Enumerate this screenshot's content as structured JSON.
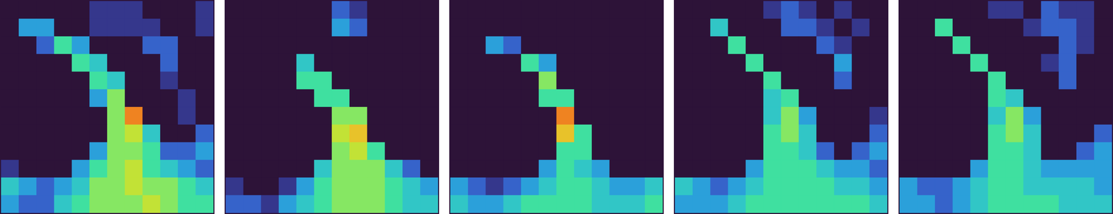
{
  "chart_data": [
    {
      "type": "heatmap",
      "tick_labels": false,
      "zlim": [
        0,
        10
      ],
      "cells": [
        [
          0,
          0,
          0,
          0,
          0,
          1,
          1,
          1,
          0,
          0,
          0,
          1
        ],
        [
          0,
          3,
          3,
          0,
          0,
          1,
          1,
          1,
          1,
          0,
          0,
          1
        ],
        [
          0,
          0,
          2,
          5,
          3,
          0,
          0,
          0,
          2,
          2,
          0,
          0
        ],
        [
          0,
          0,
          0,
          0,
          5,
          4,
          0,
          0,
          0,
          2,
          0,
          0
        ],
        [
          0,
          0,
          0,
          0,
          0,
          5,
          4,
          0,
          0,
          1,
          0,
          0
        ],
        [
          0,
          0,
          0,
          0,
          0,
          3,
          6,
          0,
          0,
          0,
          1,
          0
        ],
        [
          0,
          0,
          0,
          0,
          0,
          0,
          6,
          9,
          0,
          0,
          1,
          0
        ],
        [
          0,
          0,
          0,
          0,
          0,
          0,
          6,
          7,
          4,
          0,
          0,
          2
        ],
        [
          0,
          0,
          0,
          0,
          0,
          3,
          6,
          6,
          5,
          2,
          2,
          3
        ],
        [
          1,
          0,
          0,
          0,
          3,
          5,
          6,
          7,
          5,
          4,
          3,
          2
        ],
        [
          4,
          3,
          2,
          3,
          4,
          6,
          6,
          7,
          6,
          6,
          5,
          4
        ],
        [
          3,
          2,
          2,
          4,
          5,
          6,
          6,
          6,
          7,
          6,
          5,
          5
        ]
      ]
    },
    {
      "type": "heatmap",
      "tick_labels": false,
      "zlim": [
        0,
        10
      ],
      "cells": [
        [
          0,
          0,
          0,
          0,
          0,
          0,
          2,
          1,
          0,
          0,
          0,
          0
        ],
        [
          0,
          0,
          0,
          0,
          0,
          0,
          3,
          2,
          0,
          0,
          0,
          0
        ],
        [
          0,
          0,
          0,
          0,
          0,
          0,
          0,
          0,
          0,
          0,
          0,
          0
        ],
        [
          0,
          0,
          0,
          0,
          4,
          0,
          0,
          0,
          0,
          0,
          0,
          0
        ],
        [
          0,
          0,
          0,
          0,
          5,
          5,
          0,
          0,
          0,
          0,
          0,
          0
        ],
        [
          0,
          0,
          0,
          0,
          0,
          5,
          5,
          0,
          0,
          0,
          0,
          0
        ],
        [
          0,
          0,
          0,
          0,
          0,
          0,
          6,
          6,
          0,
          0,
          0,
          0
        ],
        [
          0,
          0,
          0,
          0,
          0,
          0,
          7,
          8,
          0,
          0,
          0,
          0
        ],
        [
          0,
          0,
          0,
          0,
          0,
          0,
          6,
          7,
          5,
          0,
          0,
          0
        ],
        [
          0,
          0,
          0,
          0,
          0,
          4,
          6,
          6,
          6,
          4,
          2,
          0
        ],
        [
          1,
          0,
          0,
          1,
          3,
          5,
          6,
          6,
          6,
          5,
          4,
          3
        ],
        [
          2,
          2,
          1,
          3,
          4,
          5,
          6,
          6,
          6,
          5,
          4,
          4
        ]
      ]
    },
    {
      "type": "heatmap",
      "tick_labels": false,
      "zlim": [
        0,
        10
      ],
      "cells": [
        [
          0,
          0,
          0,
          0,
          0,
          0,
          0,
          0,
          0,
          0,
          0,
          0
        ],
        [
          0,
          0,
          0,
          0,
          0,
          0,
          0,
          0,
          0,
          0,
          0,
          0
        ],
        [
          0,
          0,
          3,
          2,
          0,
          0,
          0,
          0,
          0,
          0,
          0,
          0
        ],
        [
          0,
          0,
          0,
          0,
          5,
          3,
          0,
          0,
          0,
          0,
          0,
          0
        ],
        [
          0,
          0,
          0,
          0,
          0,
          6,
          0,
          0,
          0,
          0,
          0,
          0
        ],
        [
          0,
          0,
          0,
          0,
          0,
          5,
          5,
          0,
          0,
          0,
          0,
          0
        ],
        [
          0,
          0,
          0,
          0,
          0,
          0,
          9,
          0,
          0,
          0,
          0,
          0
        ],
        [
          0,
          0,
          0,
          0,
          0,
          0,
          8,
          5,
          0,
          0,
          0,
          0
        ],
        [
          0,
          0,
          0,
          0,
          0,
          0,
          5,
          5,
          0,
          0,
          0,
          0
        ],
        [
          0,
          0,
          0,
          0,
          0,
          3,
          5,
          4,
          3,
          0,
          0,
          0
        ],
        [
          3,
          2,
          1,
          2,
          3,
          4,
          5,
          5,
          4,
          3,
          3,
          4
        ],
        [
          4,
          3,
          3,
          4,
          5,
          5,
          5,
          5,
          4,
          4,
          4,
          5
        ]
      ]
    },
    {
      "type": "heatmap",
      "tick_labels": false,
      "zlim": [
        0,
        10
      ],
      "cells": [
        [
          0,
          0,
          0,
          0,
          0,
          1,
          2,
          1,
          0,
          1,
          0,
          0
        ],
        [
          0,
          0,
          4,
          0,
          0,
          0,
          2,
          2,
          1,
          0,
          1,
          0
        ],
        [
          0,
          0,
          0,
          5,
          0,
          0,
          0,
          0,
          2,
          1,
          0,
          0
        ],
        [
          0,
          0,
          0,
          0,
          5,
          0,
          0,
          0,
          0,
          3,
          0,
          0
        ],
        [
          0,
          0,
          0,
          0,
          0,
          5,
          0,
          0,
          0,
          2,
          0,
          0
        ],
        [
          0,
          0,
          0,
          0,
          0,
          4,
          5,
          0,
          0,
          0,
          0,
          0
        ],
        [
          0,
          0,
          0,
          0,
          0,
          4,
          6,
          3,
          0,
          0,
          0,
          1
        ],
        [
          0,
          0,
          0,
          0,
          0,
          5,
          6,
          4,
          0,
          0,
          0,
          2
        ],
        [
          0,
          0,
          0,
          0,
          0,
          5,
          5,
          4,
          2,
          0,
          2,
          3
        ],
        [
          0,
          0,
          0,
          0,
          3,
          5,
          5,
          5,
          4,
          3,
          3,
          2
        ],
        [
          4,
          3,
          2,
          3,
          4,
          5,
          5,
          5,
          5,
          4,
          4,
          3
        ],
        [
          3,
          3,
          3,
          4,
          5,
          5,
          5,
          5,
          5,
          5,
          5,
          4
        ]
      ]
    },
    {
      "type": "heatmap",
      "tick_labels": false,
      "zlim": [
        0,
        10
      ],
      "cells": [
        [
          0,
          0,
          0,
          0,
          0,
          1,
          1,
          0,
          2,
          1,
          1,
          0
        ],
        [
          0,
          0,
          5,
          0,
          0,
          0,
          0,
          1,
          2,
          2,
          1,
          0
        ],
        [
          0,
          0,
          0,
          5,
          0,
          0,
          0,
          0,
          0,
          2,
          1,
          0
        ],
        [
          0,
          0,
          0,
          0,
          5,
          0,
          0,
          0,
          1,
          2,
          0,
          0
        ],
        [
          0,
          0,
          0,
          0,
          0,
          5,
          0,
          0,
          0,
          2,
          0,
          0
        ],
        [
          0,
          0,
          0,
          0,
          0,
          5,
          4,
          0,
          0,
          0,
          0,
          0
        ],
        [
          0,
          0,
          0,
          0,
          0,
          4,
          6,
          3,
          0,
          0,
          0,
          0
        ],
        [
          0,
          0,
          0,
          0,
          0,
          5,
          6,
          4,
          0,
          0,
          0,
          2
        ],
        [
          0,
          0,
          0,
          0,
          0,
          5,
          5,
          4,
          0,
          0,
          2,
          3
        ],
        [
          0,
          0,
          0,
          0,
          3,
          5,
          5,
          4,
          3,
          3,
          3,
          3
        ],
        [
          3,
          2,
          2,
          3,
          4,
          5,
          5,
          4,
          4,
          4,
          4,
          3
        ],
        [
          3,
          3,
          2,
          3,
          4,
          5,
          5,
          5,
          5,
          4,
          4,
          4
        ]
      ]
    }
  ]
}
